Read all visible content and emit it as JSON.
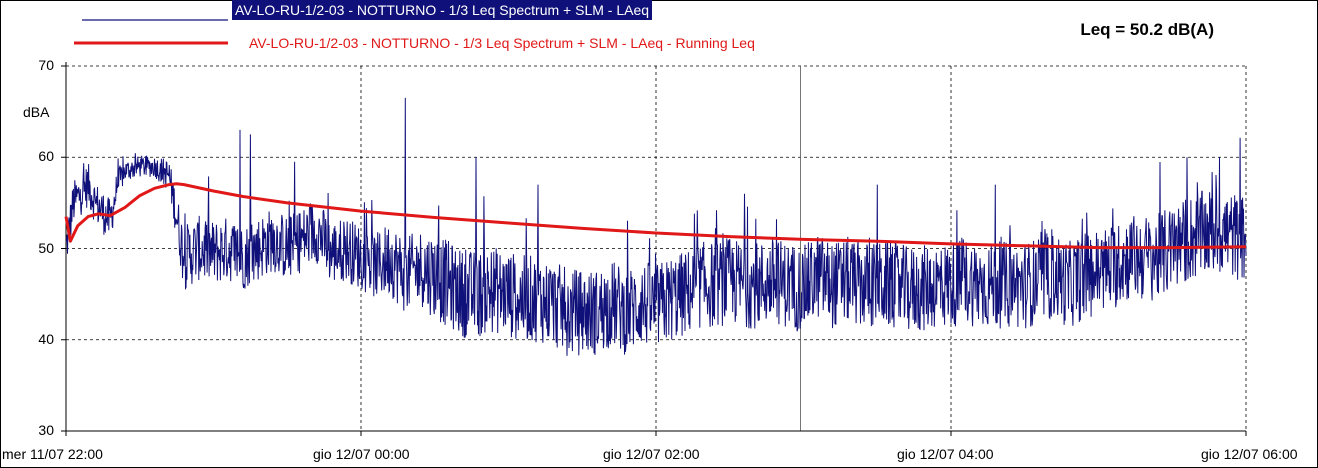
{
  "chart_data": {
    "type": "line",
    "title": "",
    "annotation": "Leq = 50.2 dB(A)",
    "xlabel": "",
    "ylabel": "dBA",
    "ylim": [
      30,
      70
    ],
    "yticks": [
      "70",
      "60",
      "50",
      "40",
      "30"
    ],
    "xlim": [
      "mer 11/07 22:00",
      "gio 12/07 06:00"
    ],
    "xticks": [
      "mer 11/07 22:00",
      "gio 12/07 00:00",
      "gio 12/07 02:00",
      "gio 12/07 04:00",
      "gio 12/07 06:00"
    ],
    "grid": true,
    "legend": "top",
    "colors": {
      "laeq": "#10107a",
      "running": "#e01818"
    },
    "series": [
      {
        "name": "AV-LO-RU-1/2-03 - NOTTURNO - 1/3 Leq Spectrum + SLM - LAeq",
        "x_hours": [
          0.0,
          0.05,
          0.1,
          0.15,
          0.2,
          0.25,
          0.3,
          0.35,
          0.4,
          0.5,
          0.6,
          0.7,
          0.8,
          0.9,
          1.0,
          1.1,
          1.2,
          1.3,
          1.4,
          1.5,
          1.6,
          1.7,
          1.8,
          1.9,
          2.0,
          2.1,
          2.2,
          2.3,
          2.4,
          2.5,
          2.6,
          2.7,
          2.8,
          2.9,
          3.0,
          3.1,
          3.2,
          3.3,
          3.4,
          3.5,
          3.6,
          3.7,
          3.8,
          3.9,
          4.0,
          4.1,
          4.2,
          4.3,
          4.4,
          4.5,
          4.6,
          4.7,
          4.8,
          4.9,
          5.0,
          5.1,
          5.2,
          5.3,
          5.4,
          5.5,
          5.6,
          5.7,
          5.8,
          5.9,
          6.0,
          6.1,
          6.2,
          6.3,
          6.4,
          6.5,
          6.6,
          6.7,
          6.8,
          6.9,
          7.0,
          7.1,
          7.2,
          7.3,
          7.4,
          7.5,
          7.6,
          7.7,
          7.8,
          7.9,
          8.0
        ],
        "y_center": [
          50,
          55,
          56,
          57,
          55,
          54,
          53,
          57,
          58.5,
          59,
          59,
          58,
          49,
          50,
          49.5,
          50,
          49,
          50,
          51,
          50,
          51,
          52,
          49.5,
          50,
          49,
          48,
          49,
          47,
          48,
          47,
          46,
          45,
          45,
          45.5,
          45,
          44.5,
          44.5,
          44,
          43,
          43,
          43,
          44,
          43,
          44,
          43.5,
          44.5,
          45,
          46,
          46,
          46.5,
          46,
          46,
          46.5,
          46,
          45.5,
          47,
          46,
          46.5,
          46,
          46,
          46,
          45.5,
          45.5,
          46,
          46,
          46.5,
          46,
          46,
          46,
          46,
          46.5,
          47,
          46,
          47,
          47.5,
          48,
          49,
          49,
          49,
          50,
          51,
          51.5,
          52,
          51.5,
          51
        ],
        "y_spread": [
          2,
          2,
          2,
          2,
          2,
          2,
          2,
          1.5,
          1,
          1,
          1,
          1.5,
          3,
          3,
          3,
          3,
          3,
          3,
          3,
          3,
          3,
          3,
          3,
          3,
          3,
          3,
          3.5,
          3.5,
          3.5,
          4,
          4,
          4,
          4,
          4,
          4,
          4,
          4,
          4,
          4,
          4,
          4,
          4,
          4,
          4,
          4,
          4,
          4,
          4,
          4,
          4,
          4,
          4,
          4,
          4,
          4,
          4,
          4,
          4,
          4,
          4,
          4,
          4,
          4,
          4,
          4,
          4,
          4,
          4,
          4,
          4,
          4,
          4,
          4,
          4,
          4,
          4,
          4,
          4,
          4,
          4,
          4,
          4,
          4,
          4,
          4
        ],
        "peaks_hours": [
          1.18,
          1.25,
          1.55,
          2.3,
          2.78,
          3.2,
          4.6,
          5.5,
          6.3,
          7.6,
          7.82
        ],
        "peaks_values": [
          63,
          62.5,
          59.5,
          66.5,
          60,
          57,
          56,
          57,
          57,
          60,
          60
        ]
      },
      {
        "name": "AV-LO-RU-1/2-03 - NOTTURNO - 1/3 Leq Spectrum + SLM - LAeq - Running Leq",
        "x_hours": [
          0.0,
          0.03,
          0.08,
          0.15,
          0.22,
          0.3,
          0.4,
          0.5,
          0.6,
          0.7,
          0.75,
          0.8,
          1.0,
          1.2,
          1.5,
          2.0,
          2.5,
          3.0,
          3.5,
          4.0,
          4.5,
          5.0,
          5.5,
          6.0,
          6.5,
          7.0,
          7.5,
          8.0
        ],
        "values": [
          53.5,
          50.8,
          52.5,
          53.5,
          53.8,
          53.6,
          54.5,
          55.8,
          56.6,
          57.0,
          57.1,
          57.0,
          56.3,
          55.7,
          55.0,
          54.1,
          53.4,
          52.8,
          52.2,
          51.7,
          51.3,
          51.0,
          50.8,
          50.5,
          50.3,
          50.1,
          50.1,
          50.2
        ]
      }
    ]
  }
}
